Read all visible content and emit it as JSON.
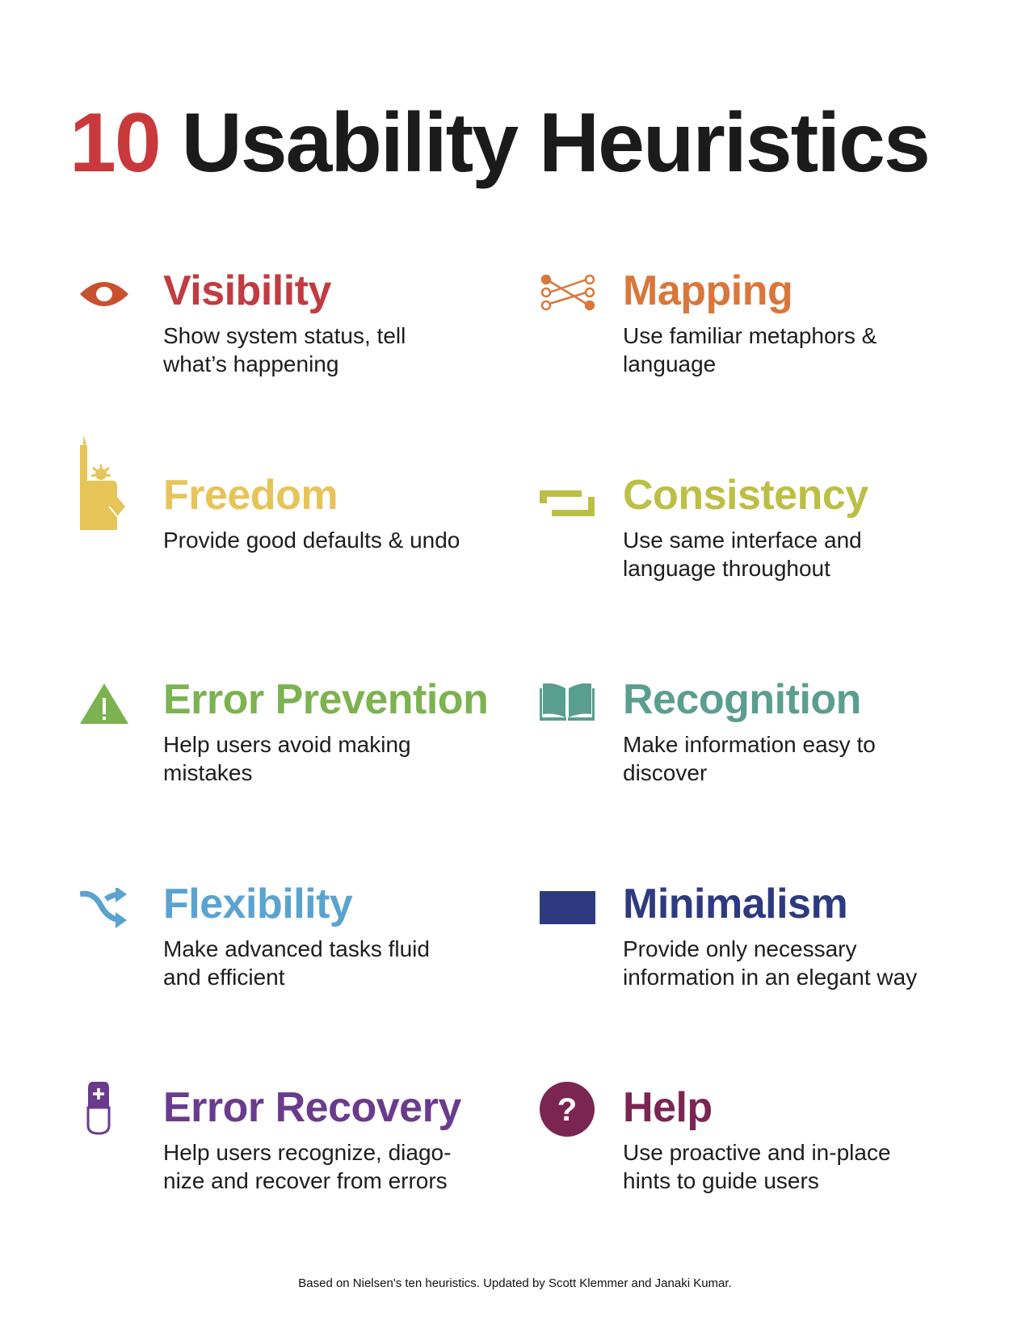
{
  "title": {
    "number": "10",
    "text": "Usability Heuristics",
    "number_color": "#c9393b"
  },
  "items": [
    {
      "heading": "Visibility",
      "description": "Show system status, tell what’s happening",
      "icon": "eye-icon",
      "color": "#c23b40",
      "icon_color": "#c9502f"
    },
    {
      "heading": "Mapping",
      "description": "Use familiar metaphors & language",
      "icon": "mapping-nodes-icon",
      "color": "#d9773a",
      "icon_color": "#d9773a"
    },
    {
      "heading": "Freedom",
      "description": "Provide good defaults & undo",
      "icon": "statue-of-liberty-icon",
      "color": "#e6c458",
      "icon_color": "#e6c458"
    },
    {
      "heading": "Consistency",
      "description": "Use same interface and language throughout",
      "icon": "consistency-brackets-icon",
      "color": "#bcbf45",
      "icon_color": "#bcbf45"
    },
    {
      "heading": "Error Prevention",
      "description": "Help users avoid making mistakes",
      "icon": "warning-triangle-icon",
      "color": "#7cb24f",
      "icon_color": "#7cb24f"
    },
    {
      "heading": "Recognition",
      "description": "Make information easy to discover",
      "icon": "open-book-icon",
      "color": "#5a9e8f",
      "icon_color": "#5a9e8f"
    },
    {
      "heading": "Flexibility",
      "description": "Make advanced tasks fluid and efficient",
      "icon": "shuffle-icon",
      "color": "#5aa3d0",
      "icon_color": "#5aa3d0"
    },
    {
      "heading": "Minimalism",
      "description": "Provide only necessary information in an elegant way",
      "icon": "rectangle-icon",
      "color": "#2e3a80",
      "icon_color": "#2e3a80"
    },
    {
      "heading": "Error Recovery",
      "description": "Help users recognize, diago-nize and recover from errors",
      "icon": "mouse-plus-icon",
      "color": "#6a3b8d",
      "icon_color": "#6a3b8d"
    },
    {
      "heading": "Help",
      "description": "Use proactive and in-place hints to guide users",
      "icon": "question-circle-icon",
      "color": "#7b2553",
      "icon_color": "#7b2553"
    }
  ],
  "footer": "Based on Nielsen's ten heuristics. Updated by Scott Klemmer and Janaki Kumar."
}
